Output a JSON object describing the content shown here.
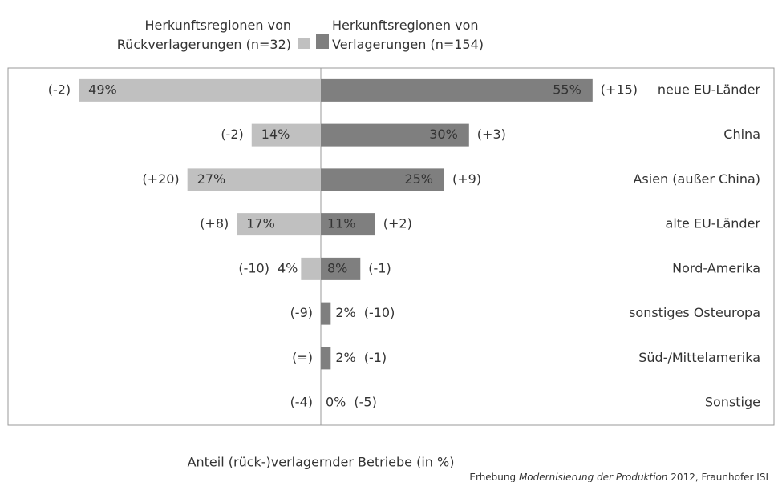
{
  "chart_data": {
    "type": "diverging-bar",
    "categories": [
      "neue EU-Länder",
      "China",
      "Asien (außer China)",
      "alte EU-Länder",
      "Nord-Amerika",
      "sonstiges Osteuropa",
      "Süd-/Mittelamerika",
      "Sonstige"
    ],
    "series": [
      {
        "name": "Herkunftsregionen von Rückverlagerungen (n=32)",
        "color": "#c0c0c0",
        "side": "left",
        "values": [
          49,
          14,
          27,
          17,
          4,
          0,
          0,
          0
        ],
        "value_labels": [
          "49%",
          "14%",
          "27%",
          "17%",
          "4%",
          null,
          null,
          null
        ],
        "change_labels": [
          "(-2)",
          "(-2)",
          "(+20)",
          "(+8)",
          "(-10)",
          "(-9)",
          "(=)",
          "(-4)"
        ]
      },
      {
        "name": "Herkunftsregionen von Verlagerungen (n=154)",
        "color": "#7f7f7f",
        "side": "right",
        "values": [
          55,
          30,
          25,
          11,
          8,
          2,
          2,
          0
        ],
        "value_labels": [
          "55%",
          "30%",
          "25%",
          "11%",
          "8%",
          "2%",
          "2%",
          "0%"
        ],
        "change_labels": [
          "(+15)",
          "(+3)",
          "(+9)",
          "(+2)",
          "(-1)",
          "(-10)",
          "(-1)",
          "(-5)"
        ]
      }
    ],
    "xlabel": "Anteil (rück-)verlagernder Betriebe (in %)",
    "source": [
      "Erhebung ",
      "Modernisierung der Produktion",
      " 2012, Fraunhofer ISI"
    ]
  }
}
